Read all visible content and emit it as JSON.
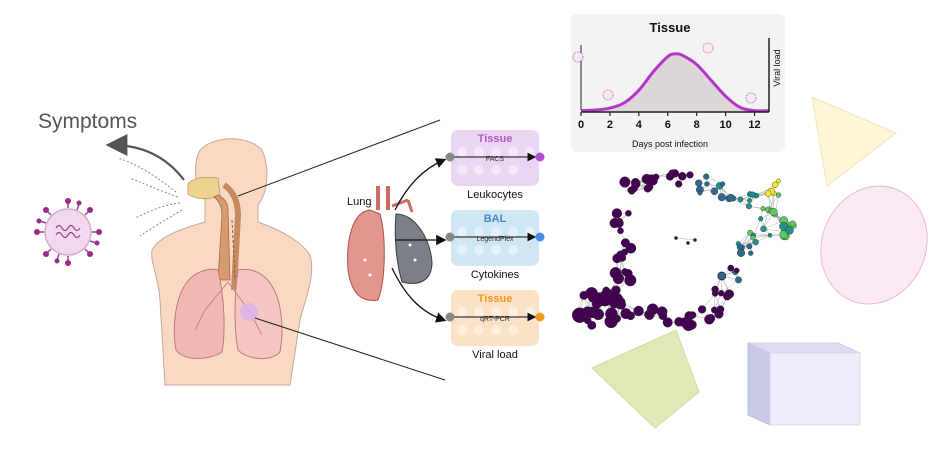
{
  "symptoms_label": "Symptoms",
  "lung_label": "Lung",
  "assays": [
    {
      "sample": "Tissue",
      "method": "FACS",
      "readout": "Leukocytes",
      "sample_color": "#b15ccc",
      "panel_color": "#ead5f2",
      "end_color": "#b34fd1"
    },
    {
      "sample": "BAL",
      "method": "LegendPlex",
      "readout": "Cytokines",
      "sample_color": "#4a86c5",
      "panel_color": "#cfe6f3",
      "end_color": "#4a90e2"
    },
    {
      "sample": "Tissue",
      "method": "qRT-PCR",
      "readout": "Viral load",
      "sample_color": "#f29a1f",
      "panel_color": "#fbe1c6",
      "end_color": "#f29a1f"
    }
  ],
  "chart_data": {
    "type": "area",
    "title": "Tissue",
    "xlabel": "Days post infection",
    "ylabel": "Viral load",
    "x_ticks": [
      0,
      2,
      4,
      6,
      8,
      10,
      12
    ],
    "xlim": [
      0,
      13
    ],
    "ylim": [
      0,
      1
    ],
    "x": [
      0,
      1,
      2,
      3,
      4,
      5,
      6,
      6.5,
      7,
      8,
      9,
      10,
      11,
      12,
      13
    ],
    "y": [
      0.02,
      0.03,
      0.06,
      0.14,
      0.33,
      0.61,
      0.84,
      0.88,
      0.86,
      0.72,
      0.48,
      0.24,
      0.07,
      0.02,
      0.02
    ],
    "series_color": "#b535c9",
    "fill_color": "#dcd6d6",
    "grid": false
  },
  "colors": {
    "network_dark": "#440154",
    "network_mid": "#31688e",
    "network_teal": "#21918c",
    "network_green": "#5ec962",
    "network_yellow": "#fde725"
  },
  "icons": [
    "virus-icon",
    "human-respiratory-icon",
    "lung-icon",
    "network-icon"
  ]
}
